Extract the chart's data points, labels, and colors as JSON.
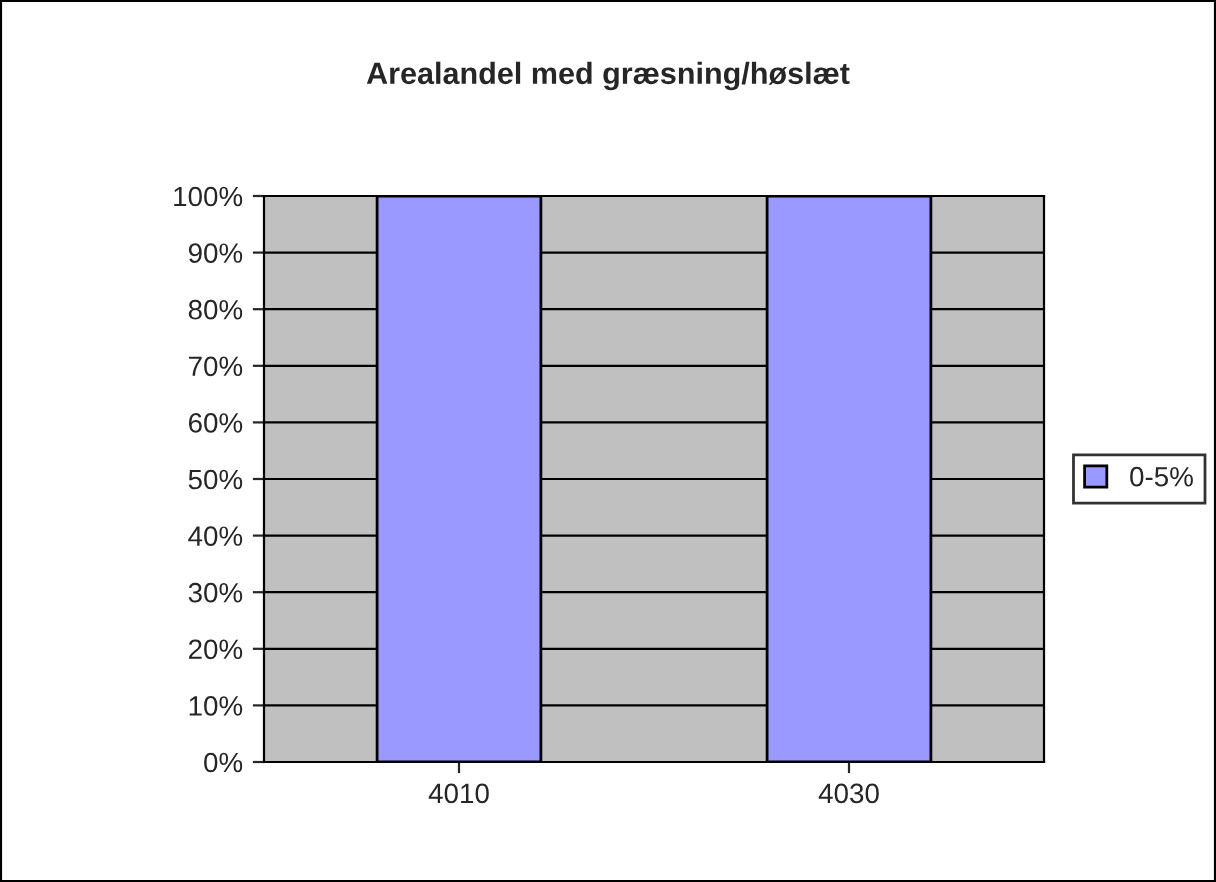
{
  "chart_data": {
    "type": "bar",
    "title": "Arealandel med græsning/høslæt",
    "categories": [
      "4010",
      "4030"
    ],
    "series": [
      {
        "name": "0-5%",
        "color": "#9999ff",
        "values": [
          100,
          100
        ]
      }
    ],
    "ylim": [
      0,
      100
    ],
    "yticks": [
      {
        "value": 0,
        "label": "0%"
      },
      {
        "value": 10,
        "label": "10%"
      },
      {
        "value": 20,
        "label": "20%"
      },
      {
        "value": 30,
        "label": "30%"
      },
      {
        "value": 40,
        "label": "40%"
      },
      {
        "value": 50,
        "label": "50%"
      },
      {
        "value": 60,
        "label": "60%"
      },
      {
        "value": 70,
        "label": "70%"
      },
      {
        "value": 80,
        "label": "80%"
      },
      {
        "value": 90,
        "label": "90%"
      },
      {
        "value": 100,
        "label": "100%"
      }
    ],
    "grid": "y",
    "legend": "right"
  }
}
